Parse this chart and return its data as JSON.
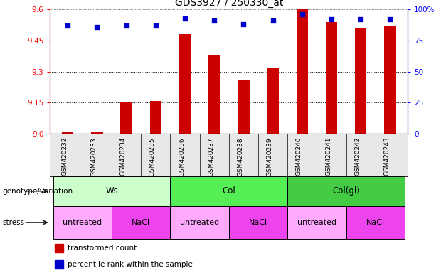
{
  "title": "GDS3927 / 250330_at",
  "samples": [
    "GSM420232",
    "GSM420233",
    "GSM420234",
    "GSM420235",
    "GSM420236",
    "GSM420237",
    "GSM420238",
    "GSM420239",
    "GSM420240",
    "GSM420241",
    "GSM420242",
    "GSM420243"
  ],
  "transformed_count": [
    9.01,
    9.01,
    9.15,
    9.16,
    9.48,
    9.38,
    9.26,
    9.32,
    9.6,
    9.54,
    9.51,
    9.52
  ],
  "percentile_rank": [
    87,
    86,
    87,
    87,
    93,
    91,
    88,
    91,
    96,
    92,
    92,
    92
  ],
  "ymin": 9.0,
  "ymax": 9.6,
  "yticks": [
    9.0,
    9.15,
    9.3,
    9.45,
    9.6
  ],
  "right_yticks": [
    0,
    25,
    50,
    75,
    100
  ],
  "bar_color": "#cc0000",
  "marker_color": "#0000cc",
  "bar_width": 0.4,
  "bg_color": "#e8e8e8",
  "genotype_groups": [
    {
      "label": "Ws",
      "start": 0,
      "end": 3,
      "color": "#ccffcc"
    },
    {
      "label": "Col",
      "start": 4,
      "end": 7,
      "color": "#55ee55"
    },
    {
      "label": "Col(gl)",
      "start": 8,
      "end": 11,
      "color": "#44cc44"
    }
  ],
  "stress_groups": [
    {
      "label": "untreated",
      "start": 0,
      "end": 1,
      "color": "#ffaaff"
    },
    {
      "label": "NaCl",
      "start": 2,
      "end": 3,
      "color": "#ee44ee"
    },
    {
      "label": "untreated",
      "start": 4,
      "end": 5,
      "color": "#ffaaff"
    },
    {
      "label": "NaCl",
      "start": 6,
      "end": 7,
      "color": "#ee44ee"
    },
    {
      "label": "untreated",
      "start": 8,
      "end": 9,
      "color": "#ffaaff"
    },
    {
      "label": "NaCl",
      "start": 10,
      "end": 11,
      "color": "#ee44ee"
    }
  ],
  "legend_items": [
    {
      "label": "transformed count",
      "color": "#cc0000"
    },
    {
      "label": "percentile rank within the sample",
      "color": "#0000cc"
    }
  ],
  "title_fontsize": 10,
  "tick_fontsize": 7.5,
  "label_fontsize": 8,
  "sample_fontsize": 6.5
}
